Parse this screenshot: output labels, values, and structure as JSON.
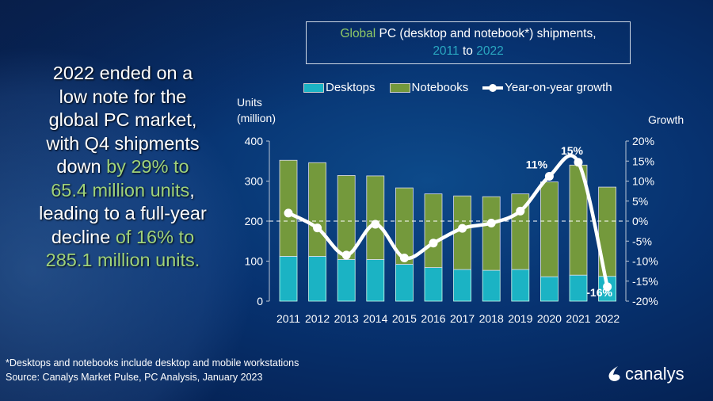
{
  "headline": [
    [
      {
        "t": "2022 ended on a",
        "g": false
      }
    ],
    [
      {
        "t": "low note for the",
        "g": false
      }
    ],
    [
      {
        "t": "global PC market,",
        "g": false
      }
    ],
    [
      {
        "t": "with Q4 shipments",
        "g": false
      }
    ],
    [
      {
        "t": "down ",
        "g": false
      },
      {
        "t": "by 29% to",
        "g": true
      }
    ],
    [
      {
        "t": "65.4 million units",
        "g": true
      },
      {
        "t": ",",
        "g": false
      }
    ],
    [
      {
        "t": "leading to a full-year",
        "g": false
      }
    ],
    [
      {
        "t": "decline ",
        "g": false
      },
      {
        "t": "of 16% to",
        "g": true
      }
    ],
    [
      {
        "t": "285.1 million units.",
        "g": true
      }
    ]
  ],
  "footer": {
    "note": "*Desktops and notebooks include desktop and mobile workstations",
    "source": "Source: Canalys Market Pulse, PC Analysis, January 2023"
  },
  "logo": {
    "text": "canalys"
  },
  "colors": {
    "desktops": "#1bb3c4",
    "notebooks": "#74993c",
    "growth": "#ffffff",
    "highlight_green": "#9fd27a",
    "highlight_cyan": "#2aa7c0"
  },
  "chart_data": {
    "type": "bar",
    "stacked": true,
    "title_parts": {
      "p1": "Global",
      "p2": " PC (desktop and notebook*) shipments,",
      "p3": "2011",
      "p4": " to ",
      "p5": "2022"
    },
    "ylabel": "Units (million)",
    "ylabel_lines": [
      "Units",
      "(million)"
    ],
    "y2label": "Growth",
    "ylim": [
      0,
      400
    ],
    "yticks": [
      "0",
      "100",
      "200",
      "300",
      "400"
    ],
    "y2lim": [
      -20,
      20
    ],
    "y2ticks": [
      "-20%",
      "-15%",
      "-10%",
      "-5%",
      "0%",
      "5%",
      "10%",
      "15%",
      "20%"
    ],
    "legend_position": "top",
    "categories": [
      "2011",
      "2012",
      "2013",
      "2014",
      "2015",
      "2016",
      "2017",
      "2018",
      "2019",
      "2020",
      "2021",
      "2022"
    ],
    "series": [
      {
        "name": "Desktops",
        "values": [
          112,
          112,
          104,
          104,
          92,
          84,
          79,
          77,
          79,
          61,
          65,
          62
        ]
      },
      {
        "name": "Notebooks",
        "values": [
          240,
          234,
          210,
          209,
          191,
          184,
          184,
          184,
          189,
          237,
          275,
          223
        ]
      },
      {
        "name": "Year-on-year growth",
        "axis": "right",
        "values": [
          2.0,
          -1.7,
          -8.5,
          -0.8,
          -9.2,
          -5.5,
          -1.8,
          -0.5,
          2.5,
          11.2,
          14.7,
          -16.4
        ]
      }
    ],
    "data_labels": [
      {
        "category": "2020",
        "text": "11%"
      },
      {
        "category": "2021",
        "text": "15%"
      },
      {
        "category": "2022",
        "text": "-16%"
      }
    ]
  }
}
